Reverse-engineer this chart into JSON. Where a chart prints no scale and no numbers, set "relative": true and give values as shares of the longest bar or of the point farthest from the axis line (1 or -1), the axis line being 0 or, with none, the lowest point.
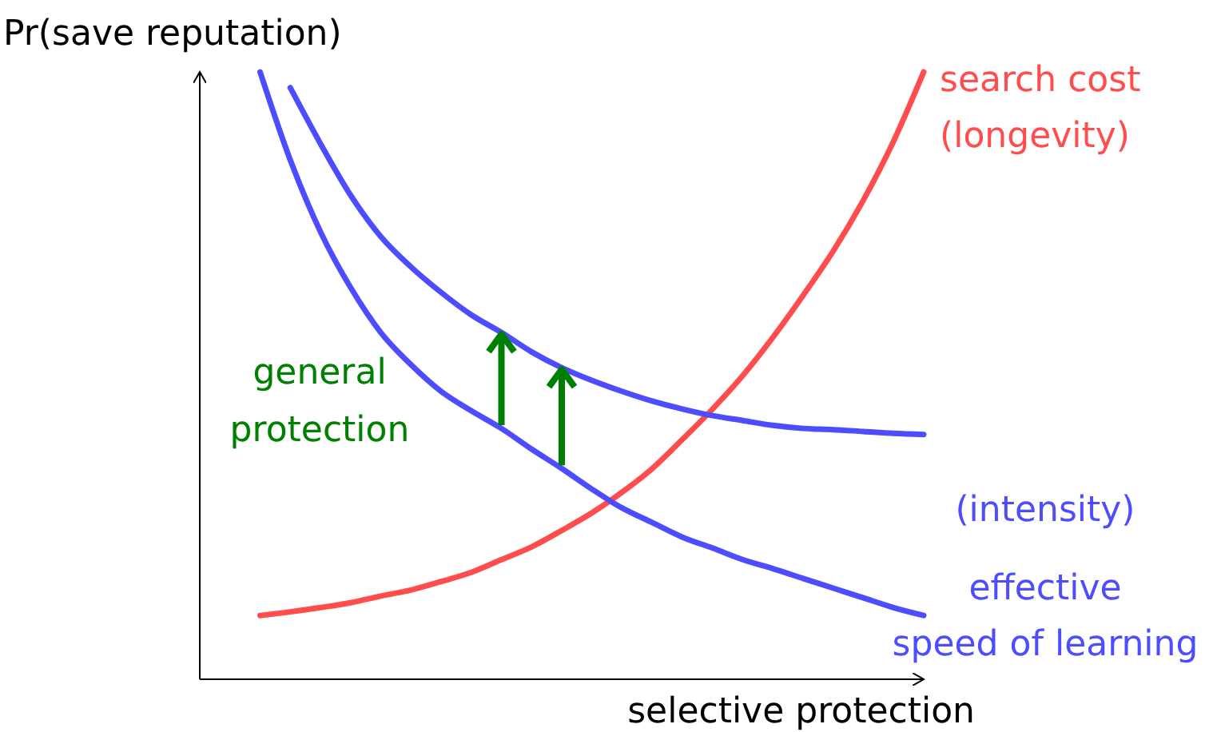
{
  "chart_data": {
    "type": "line",
    "relative": true,
    "xlabel": "selective protection",
    "ylabel": "Pr(save reputation)",
    "annotations": [
      "general\nprotection"
    ],
    "categories": [
      null,
      null,
      null,
      null,
      null,
      null,
      null,
      null,
      null,
      null,
      null,
      null,
      null,
      null,
      null,
      null,
      null,
      null,
      null,
      null,
      null,
      null,
      null,
      null,
      null
    ],
    "series": [
      {
        "name": "search cost\n(longevity)",
        "color": "#ff4d4d",
        "values": [
          null,
          null,
          0.105,
          0.111,
          0.118,
          0.126,
          0.137,
          0.147,
          0.161,
          0.176,
          0.197,
          0.218,
          0.245,
          0.274,
          0.308,
          0.347,
          0.395,
          0.445,
          0.5,
          0.563,
          0.632,
          0.705,
          0.789,
          0.886,
          1
        ]
      },
      {
        "name": "(intensity)",
        "color": "#4d4dff",
        "values": [
          null,
          null,
          null,
          0.974,
          0.882,
          0.797,
          0.729,
          0.679,
          0.637,
          0.6,
          0.571,
          0.539,
          0.513,
          0.492,
          0.474,
          0.458,
          0.445,
          0.434,
          0.426,
          0.418,
          0.413,
          0.411,
          0.408,
          0.405,
          0.403
        ]
      },
      {
        "name": "effective\nspeed of learning",
        "color": "#4d4dff",
        "values": [
          null,
          null,
          1,
          0.855,
          0.737,
          0.645,
          0.571,
          0.518,
          0.474,
          0.442,
          0.413,
          0.379,
          0.347,
          0.313,
          0.282,
          0.258,
          0.234,
          0.216,
          0.197,
          0.182,
          0.166,
          0.15,
          0.134,
          0.118,
          0.105
        ]
      }
    ]
  }
}
